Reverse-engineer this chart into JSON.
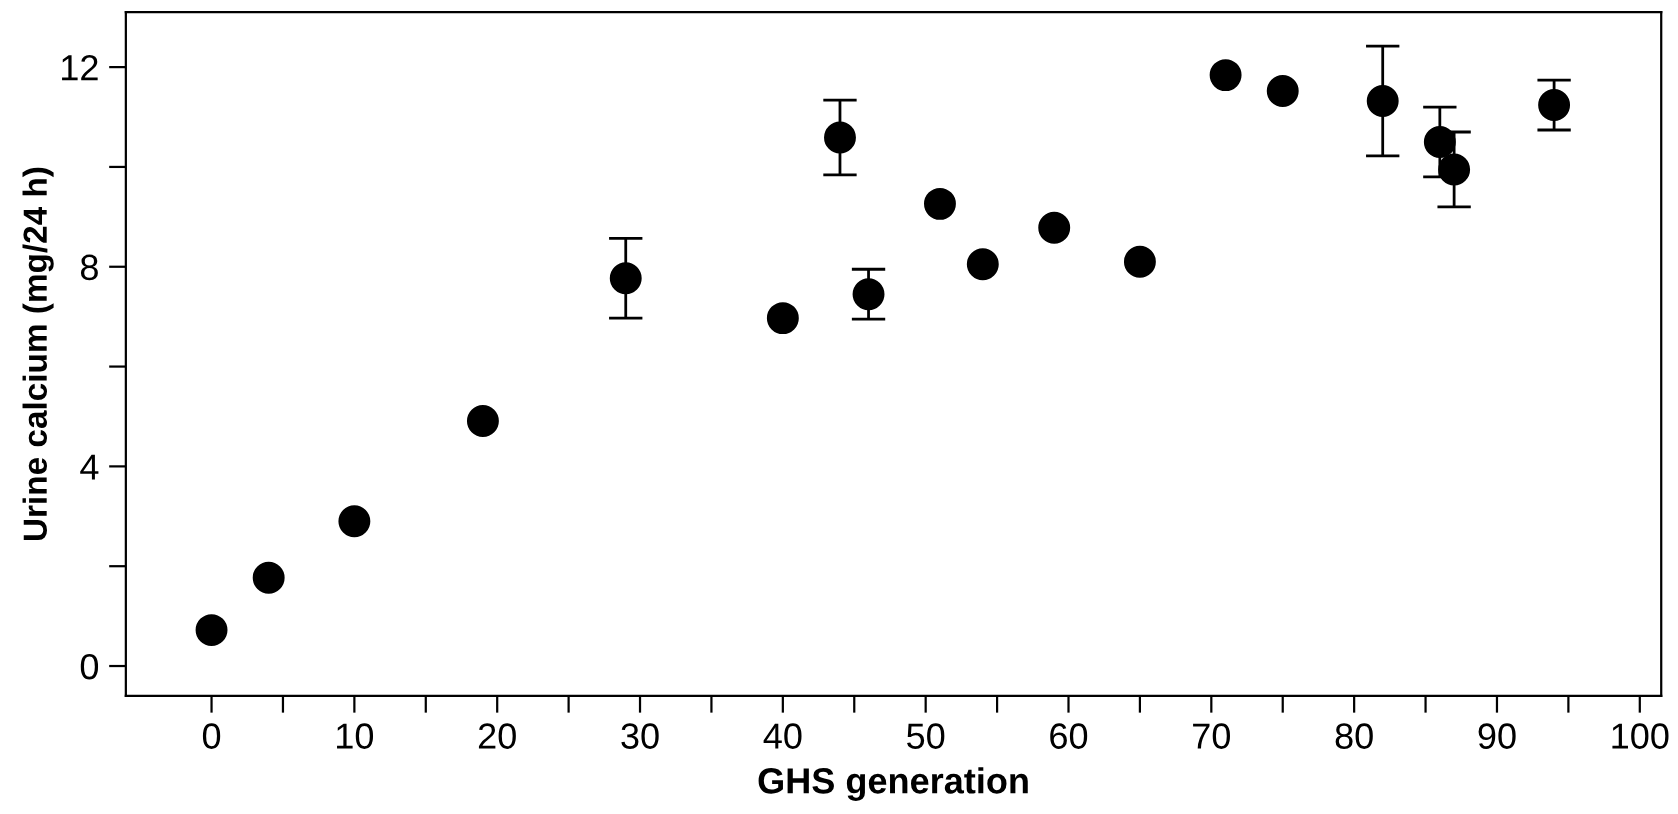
{
  "chart_data": {
    "type": "scatter",
    "xlabel": "GHS generation",
    "ylabel": "Urine calcium (mg/24 h)",
    "series": [
      {
        "color": "#000000",
        "x": [
          0,
          4,
          10,
          19,
          29,
          40,
          44,
          46,
          51,
          54,
          59,
          65,
          71,
          75,
          82,
          86,
          87,
          94
        ],
        "values": [
          0.72,
          1.77,
          2.9,
          4.91,
          7.77,
          6.97,
          10.59,
          7.45,
          9.26,
          8.05,
          8.78,
          8.1,
          11.84,
          11.52,
          11.32,
          10.5,
          9.95,
          11.24
        ],
        "errors": [
          null,
          null,
          null,
          null,
          0.8,
          null,
          0.75,
          0.5,
          null,
          null,
          null,
          null,
          null,
          null,
          1.1,
          0.7,
          0.75,
          0.5
        ]
      }
    ],
    "marker": "circle",
    "xlim": [
      -6,
      101.5
    ],
    "ylim": [
      -0.6,
      13.1
    ],
    "xticks": [
      0,
      {
        "value": 5,
        "label": null
      },
      10,
      {
        "value": 15,
        "label": null
      },
      20,
      {
        "value": 25,
        "label": null
      },
      30,
      {
        "value": 35,
        "label": null
      },
      40,
      {
        "value": 45,
        "label": null
      },
      50,
      {
        "value": 55,
        "label": null
      },
      60,
      {
        "value": 65,
        "label": null
      },
      70,
      {
        "value": 75,
        "label": null
      },
      80,
      {
        "value": 85,
        "label": null
      },
      90,
      {
        "value": 95,
        "label": null
      },
      100
    ],
    "yticks": [
      0,
      {
        "value": 2,
        "label": null
      },
      4,
      {
        "value": 6,
        "label": null
      },
      8,
      {
        "value": 10,
        "label": null
      },
      12
    ],
    "grid": false,
    "legend": false
  }
}
